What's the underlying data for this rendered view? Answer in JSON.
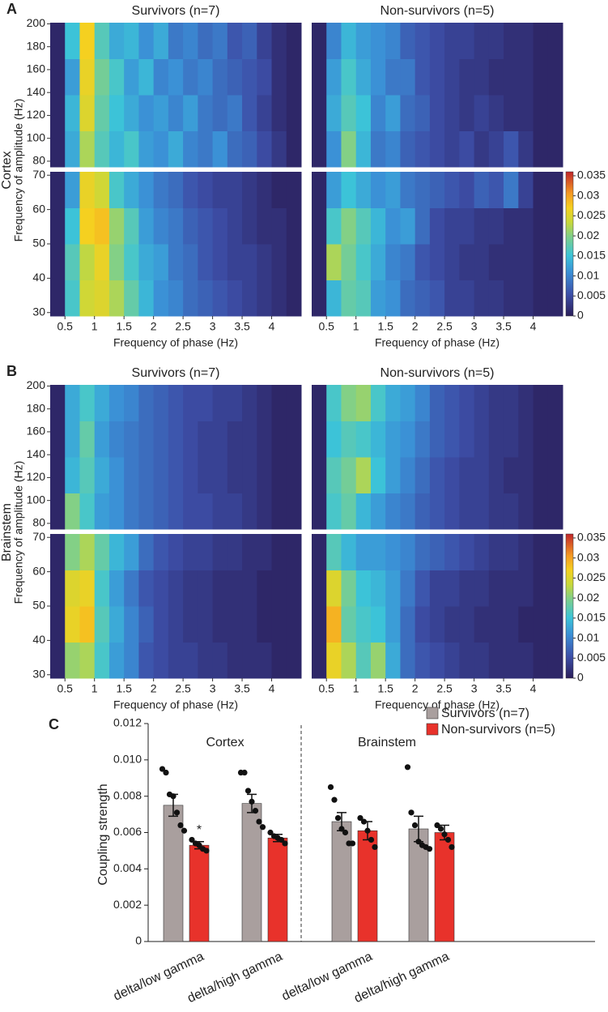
{
  "figure": {
    "panels": [
      {
        "label": "A",
        "row_label": "Cortex",
        "ylabel": "Frequency of amplitude (Hz)",
        "xlabel": "Frequency of phase (Hz)"
      },
      {
        "label": "B",
        "row_label": "Brainstem",
        "ylabel": "Frequency of amplitude (Hz)",
        "xlabel": "Frequency of phase (Hz)"
      },
      {
        "label": "C"
      }
    ]
  },
  "chart_data": [
    {
      "type": "heatmap",
      "title": "Survivors (n=7)",
      "xlim": [
        0.25,
        4.5
      ],
      "ylim": [
        75,
        201
      ],
      "yticks": [
        80,
        100,
        120,
        140,
        160,
        180,
        200
      ],
      "zlim": [
        0,
        0.036
      ],
      "z": [
        [
          0.001,
          0.013,
          0.022,
          0.017,
          0.014,
          0.016,
          0.012,
          0.011,
          0.013,
          0.01,
          0.009,
          0.011,
          0.008,
          0.007,
          0.005,
          0.003,
          0.001
        ],
        [
          0.001,
          0.014,
          0.025,
          0.018,
          0.015,
          0.013,
          0.011,
          0.012,
          0.01,
          0.012,
          0.009,
          0.008,
          0.009,
          0.006,
          0.004,
          0.002,
          0.001
        ],
        [
          0.001,
          0.012,
          0.026,
          0.019,
          0.016,
          0.012,
          0.014,
          0.01,
          0.011,
          0.009,
          0.01,
          0.008,
          0.007,
          0.006,
          0.005,
          0.002,
          0.001
        ],
        [
          0.001,
          0.015,
          0.027,
          0.017,
          0.013,
          0.014,
          0.011,
          0.013,
          0.009,
          0.01,
          0.008,
          0.009,
          0.006,
          0.007,
          0.004,
          0.002,
          0.001
        ]
      ]
    },
    {
      "type": "heatmap",
      "xlim": [
        0.25,
        4.5
      ],
      "xticks": [
        0.5,
        1,
        1.5,
        2,
        2.5,
        3,
        3.5,
        4
      ],
      "ylim": [
        29,
        71
      ],
      "yticks": [
        30,
        40,
        50,
        60,
        70
      ],
      "zlim": [
        0,
        0.036
      ],
      "z": [
        [
          0.001,
          0.016,
          0.024,
          0.025,
          0.022,
          0.018,
          0.014,
          0.011,
          0.01,
          0.008,
          0.007,
          0.006,
          0.005,
          0.004,
          0.003,
          0.002,
          0.001
        ],
        [
          0.001,
          0.017,
          0.023,
          0.026,
          0.02,
          0.016,
          0.013,
          0.012,
          0.009,
          0.008,
          0.006,
          0.005,
          0.004,
          0.004,
          0.003,
          0.002,
          0.001
        ],
        [
          0.001,
          0.015,
          0.027,
          0.028,
          0.021,
          0.017,
          0.012,
          0.01,
          0.009,
          0.007,
          0.006,
          0.005,
          0.004,
          0.003,
          0.002,
          0.002,
          0.001
        ],
        [
          0.001,
          0.012,
          0.026,
          0.024,
          0.016,
          0.013,
          0.011,
          0.009,
          0.008,
          0.006,
          0.005,
          0.004,
          0.004,
          0.003,
          0.002,
          0.001,
          0.001
        ]
      ]
    },
    {
      "type": "heatmap",
      "title": "Non-survivors (n=5)",
      "xlim": [
        0.25,
        4.5
      ],
      "ylim": [
        75,
        201
      ],
      "zlim": [
        0,
        0.036
      ],
      "z": [
        [
          0.001,
          0.011,
          0.02,
          0.014,
          0.009,
          0.01,
          0.007,
          0.006,
          0.005,
          0.004,
          0.005,
          0.003,
          0.004,
          0.006,
          0.003,
          0.001,
          0.001
        ],
        [
          0.001,
          0.013,
          0.017,
          0.015,
          0.01,
          0.012,
          0.008,
          0.007,
          0.005,
          0.004,
          0.003,
          0.004,
          0.003,
          0.002,
          0.002,
          0.001,
          0.001
        ],
        [
          0.001,
          0.012,
          0.016,
          0.013,
          0.011,
          0.009,
          0.009,
          0.006,
          0.005,
          0.004,
          0.003,
          0.003,
          0.002,
          0.002,
          0.002,
          0.001,
          0.001
        ],
        [
          0.001,
          0.01,
          0.014,
          0.012,
          0.011,
          0.01,
          0.007,
          0.006,
          0.005,
          0.004,
          0.004,
          0.003,
          0.003,
          0.002,
          0.002,
          0.001,
          0.001
        ]
      ]
    },
    {
      "type": "heatmap",
      "xlim": [
        0.25,
        4.5
      ],
      "xticks": [
        0.5,
        1,
        1.5,
        2,
        2.5,
        3,
        3.5,
        4
      ],
      "ylim": [
        29,
        71
      ],
      "zlim": [
        0,
        0.036
      ],
      "colorbar_ticks": [
        0,
        0.005,
        0.01,
        0.015,
        0.02,
        0.025,
        0.03,
        0.035
      ],
      "z": [
        [
          0.001,
          0.014,
          0.018,
          0.017,
          0.012,
          0.011,
          0.008,
          0.007,
          0.006,
          0.004,
          0.004,
          0.003,
          0.003,
          0.002,
          0.002,
          0.001,
          0.001
        ],
        [
          0.001,
          0.022,
          0.019,
          0.016,
          0.013,
          0.01,
          0.009,
          0.006,
          0.005,
          0.004,
          0.003,
          0.003,
          0.002,
          0.002,
          0.002,
          0.001,
          0.001
        ],
        [
          0.001,
          0.016,
          0.02,
          0.017,
          0.014,
          0.011,
          0.012,
          0.008,
          0.005,
          0.004,
          0.004,
          0.003,
          0.003,
          0.002,
          0.002,
          0.001,
          0.001
        ],
        [
          0.001,
          0.012,
          0.015,
          0.013,
          0.011,
          0.012,
          0.009,
          0.008,
          0.007,
          0.006,
          0.005,
          0.007,
          0.006,
          0.009,
          0.004,
          0.001,
          0.001
        ]
      ]
    },
    {
      "type": "heatmap",
      "title": "Survivors (n=7)",
      "xlim": [
        0.25,
        4.5
      ],
      "ylim": [
        75,
        201
      ],
      "yticks": [
        80,
        100,
        120,
        140,
        160,
        180,
        200
      ],
      "zlim": [
        0,
        0.036
      ],
      "z": [
        [
          0.001,
          0.02,
          0.016,
          0.012,
          0.011,
          0.009,
          0.008,
          0.007,
          0.006,
          0.005,
          0.005,
          0.004,
          0.004,
          0.003,
          0.002,
          0.001,
          0.001
        ],
        [
          0.001,
          0.014,
          0.017,
          0.013,
          0.011,
          0.009,
          0.008,
          0.007,
          0.006,
          0.005,
          0.004,
          0.004,
          0.003,
          0.003,
          0.002,
          0.001,
          0.001
        ],
        [
          0.001,
          0.013,
          0.018,
          0.012,
          0.01,
          0.009,
          0.008,
          0.007,
          0.006,
          0.005,
          0.004,
          0.004,
          0.003,
          0.003,
          0.002,
          0.001,
          0.001
        ],
        [
          0.001,
          0.013,
          0.016,
          0.013,
          0.011,
          0.01,
          0.008,
          0.007,
          0.006,
          0.005,
          0.005,
          0.004,
          0.004,
          0.003,
          0.002,
          0.001,
          0.001
        ]
      ]
    },
    {
      "type": "heatmap",
      "xlim": [
        0.25,
        4.5
      ],
      "xticks": [
        0.5,
        1,
        1.5,
        2,
        2.5,
        3,
        3.5,
        4
      ],
      "ylim": [
        29,
        71
      ],
      "yticks": [
        30,
        40,
        50,
        60,
        70
      ],
      "zlim": [
        0,
        0.036
      ],
      "z": [
        [
          0.001,
          0.021,
          0.022,
          0.016,
          0.012,
          0.01,
          0.006,
          0.005,
          0.004,
          0.004,
          0.003,
          0.003,
          0.002,
          0.002,
          0.002,
          0.001,
          0.001
        ],
        [
          0.001,
          0.026,
          0.028,
          0.017,
          0.013,
          0.01,
          0.007,
          0.005,
          0.004,
          0.003,
          0.003,
          0.002,
          0.002,
          0.002,
          0.001,
          0.001,
          0.001
        ],
        [
          0.001,
          0.025,
          0.026,
          0.016,
          0.012,
          0.009,
          0.006,
          0.005,
          0.004,
          0.003,
          0.003,
          0.002,
          0.002,
          0.002,
          0.001,
          0.001,
          0.001
        ],
        [
          0.001,
          0.02,
          0.022,
          0.018,
          0.014,
          0.012,
          0.008,
          0.006,
          0.005,
          0.004,
          0.004,
          0.003,
          0.003,
          0.002,
          0.002,
          0.001,
          0.001
        ]
      ]
    },
    {
      "type": "heatmap",
      "title": "Non-survivors (n=5)",
      "xlim": [
        0.25,
        4.5
      ],
      "ylim": [
        75,
        201
      ],
      "zlim": [
        0,
        0.036
      ],
      "z": [
        [
          0.001,
          0.016,
          0.018,
          0.014,
          0.012,
          0.01,
          0.009,
          0.007,
          0.006,
          0.005,
          0.004,
          0.004,
          0.003,
          0.003,
          0.002,
          0.001,
          0.001
        ],
        [
          0.001,
          0.017,
          0.019,
          0.022,
          0.015,
          0.012,
          0.01,
          0.008,
          0.006,
          0.005,
          0.004,
          0.004,
          0.003,
          0.002,
          0.002,
          0.001,
          0.001
        ],
        [
          0.001,
          0.015,
          0.017,
          0.016,
          0.014,
          0.012,
          0.011,
          0.009,
          0.007,
          0.006,
          0.005,
          0.004,
          0.003,
          0.003,
          0.002,
          0.001,
          0.001
        ],
        [
          0.001,
          0.016,
          0.02,
          0.021,
          0.016,
          0.013,
          0.012,
          0.01,
          0.007,
          0.006,
          0.005,
          0.004,
          0.003,
          0.003,
          0.002,
          0.001,
          0.001
        ]
      ]
    },
    {
      "type": "heatmap",
      "xlim": [
        0.25,
        4.5
      ],
      "xticks": [
        0.5,
        1,
        1.5,
        2,
        2.5,
        3,
        3.5,
        4
      ],
      "ylim": [
        29,
        71
      ],
      "zlim": [
        0,
        0.036
      ],
      "colorbar_ticks": [
        0,
        0.005,
        0.01,
        0.015,
        0.02,
        0.025,
        0.03,
        0.035
      ],
      "z": [
        [
          0.001,
          0.026,
          0.022,
          0.017,
          0.021,
          0.013,
          0.008,
          0.006,
          0.005,
          0.004,
          0.003,
          0.003,
          0.002,
          0.002,
          0.002,
          0.001,
          0.001
        ],
        [
          0.001,
          0.029,
          0.018,
          0.016,
          0.015,
          0.012,
          0.008,
          0.005,
          0.004,
          0.003,
          0.003,
          0.002,
          0.002,
          0.002,
          0.001,
          0.001,
          0.001
        ],
        [
          0.001,
          0.025,
          0.019,
          0.015,
          0.014,
          0.012,
          0.009,
          0.006,
          0.004,
          0.004,
          0.003,
          0.003,
          0.002,
          0.002,
          0.002,
          0.001,
          0.001
        ],
        [
          0.001,
          0.017,
          0.014,
          0.012,
          0.012,
          0.011,
          0.01,
          0.008,
          0.007,
          0.006,
          0.005,
          0.004,
          0.003,
          0.003,
          0.002,
          0.001,
          0.001
        ]
      ]
    },
    {
      "type": "bar",
      "ylabel": "Coupling strength",
      "categories": [
        "delta/low gamma",
        "delta/high gamma",
        "delta/low gamma",
        "delta/high gamma"
      ],
      "group_labels": [
        "Cortex",
        "Brainstem"
      ],
      "ylim": [
        0,
        0.012
      ],
      "yticks": [
        0,
        0.002,
        0.004,
        0.006,
        0.008,
        {
          "value": 0.01,
          "label": "0.010"
        },
        0.012
      ],
      "series": [
        {
          "name": "Survivors (n=7)",
          "color": "#a99f9e",
          "values": [
            0.0075,
            0.0076,
            0.0066,
            0.0062
          ],
          "errors": [
            0.0006,
            0.0005,
            0.0005,
            0.0007
          ],
          "points": [
            [
              0.0095,
              0.0093,
              0.0081,
              0.008,
              0.0071,
              0.0064,
              0.0061
            ],
            [
              0.0093,
              0.0093,
              0.0083,
              0.0077,
              0.0072,
              0.0066,
              0.0063
            ],
            [
              0.0085,
              0.0078,
              0.0068,
              0.0062,
              0.006,
              0.0054,
              0.0054
            ],
            [
              0.0096,
              0.0071,
              0.0064,
              0.0055,
              0.0053,
              0.0052,
              0.0051
            ]
          ]
        },
        {
          "name": "Non-survivors (n=5)",
          "color": "#e8322b",
          "values": [
            0.0053,
            0.0057,
            0.0061,
            0.006
          ],
          "errors": [
            0.0002,
            0.0002,
            0.0005,
            0.0004
          ],
          "significance": [
            "*",
            null,
            null,
            null
          ],
          "points": [
            [
              0.0056,
              0.0054,
              0.0053,
              0.0051,
              0.005
            ],
            [
              0.006,
              0.0058,
              0.0057,
              0.0056,
              0.0054
            ],
            [
              0.0068,
              0.0066,
              0.0061,
              0.0056,
              0.0052
            ],
            [
              0.0064,
              0.0062,
              0.0059,
              0.0056,
              0.0052
            ]
          ]
        }
      ]
    }
  ]
}
